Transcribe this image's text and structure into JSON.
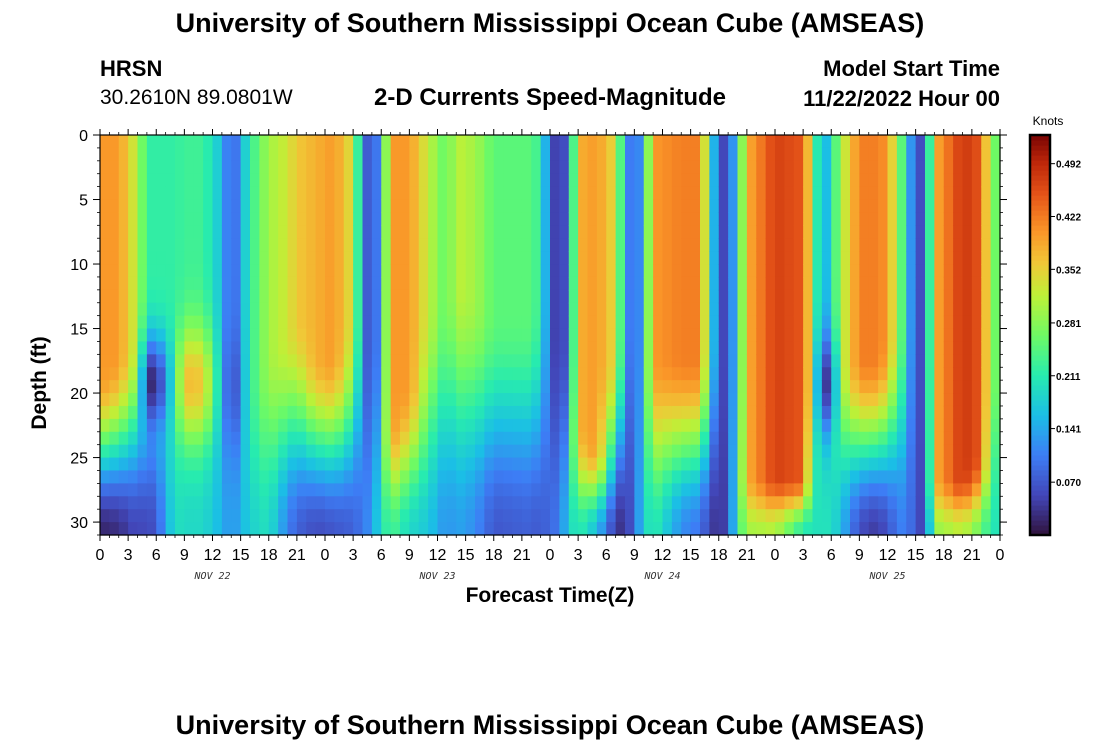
{
  "main_title": "University of Southern Mississippi Ocean Cube (AMSEAS)",
  "bottom_title": "University of Southern Mississippi Ocean Cube (AMSEAS)",
  "station": {
    "name": "HRSN",
    "coords": "30.2610N  89.0801W"
  },
  "model_start": {
    "label": "Model Start Time",
    "value": "11/22/2022 Hour 00"
  },
  "chart_data": {
    "type": "heatmap",
    "title": "2-D Currents Speed-Magnitude",
    "xlabel": "Forecast Time(Z)",
    "ylabel": "Depth (ft)",
    "x_tick_labels": [
      "0",
      "3",
      "6",
      "9",
      "12",
      "15",
      "18",
      "21",
      "0",
      "3",
      "6",
      "9",
      "12",
      "15",
      "18",
      "21",
      "0",
      "3",
      "6",
      "9",
      "12",
      "15",
      "18",
      "21",
      "0",
      "3",
      "6",
      "9",
      "12",
      "15",
      "18",
      "21",
      "0"
    ],
    "x_range_hours": [
      0,
      96
    ],
    "date_labels": [
      {
        "text": "NOV 22",
        "hour": 12
      },
      {
        "text": "NOV 23",
        "hour": 36
      },
      {
        "text": "NOV 24",
        "hour": 60
      },
      {
        "text": "NOV 25",
        "hour": 84
      }
    ],
    "y_tick_labels": [
      "0",
      "5",
      "10",
      "15",
      "20",
      "25",
      "30"
    ],
    "y_range_ft": [
      0,
      31
    ],
    "colorbar": {
      "unit": "Knots",
      "min": 0.0,
      "max": 0.53,
      "tick_labels": [
        "0.492",
        "0.422",
        "0.352",
        "0.281",
        "0.211",
        "0.141",
        "0.070"
      ],
      "tick_values": [
        0.492,
        0.422,
        0.352,
        0.281,
        0.211,
        0.141,
        0.07
      ]
    },
    "profiles": [
      {
        "hour": 0,
        "top": 0.4,
        "bottom": 0.02,
        "knee": 0.6
      },
      {
        "hour": 2,
        "top": 0.4,
        "bottom": 0.03,
        "knee": 0.55
      },
      {
        "hour": 4,
        "top": 0.31,
        "bottom": 0.06,
        "knee": 0.5
      },
      {
        "hour": 5,
        "top": 0.22,
        "bottom": 0.05,
        "knee": 0.55,
        "mid_min": 0.03
      },
      {
        "hour": 6,
        "top": 0.22,
        "bottom": 0.07,
        "knee": 0.5,
        "mid_min": 0.02
      },
      {
        "hour": 8,
        "top": 0.22,
        "bottom": 0.2,
        "knee": 0.6
      },
      {
        "hour": 9,
        "top": 0.23,
        "bottom": 0.19,
        "knee": 0.6,
        "mid_max": 0.37
      },
      {
        "hour": 11,
        "top": 0.23,
        "bottom": 0.19,
        "knee": 0.6,
        "mid_max": 0.36
      },
      {
        "hour": 13,
        "top": 0.16,
        "bottom": 0.15,
        "knee": 0.6
      },
      {
        "hour": 14,
        "top": 0.06,
        "bottom": 0.12,
        "knee": 0.6,
        "mid_min": 0.03
      },
      {
        "hour": 16,
        "top": 0.22,
        "bottom": 0.18,
        "knee": 0.6
      },
      {
        "hour": 18,
        "top": 0.3,
        "bottom": 0.2,
        "knee": 0.55
      },
      {
        "hour": 20,
        "top": 0.33,
        "bottom": 0.11,
        "knee": 0.5
      },
      {
        "hour": 21,
        "top": 0.36,
        "bottom": 0.08,
        "knee": 0.45
      },
      {
        "hour": 23,
        "top": 0.38,
        "bottom": 0.06,
        "knee": 0.55
      },
      {
        "hour": 25,
        "top": 0.4,
        "bottom": 0.07,
        "knee": 0.55
      },
      {
        "hour": 27,
        "top": 0.33,
        "bottom": 0.08,
        "knee": 0.45
      },
      {
        "hour": 28,
        "top": 0.12,
        "bottom": 0.1,
        "knee": 0.45
      },
      {
        "hour": 29,
        "top": 0.03,
        "bottom": 0.13,
        "knee": 0.5
      },
      {
        "hour": 30,
        "top": 0.17,
        "bottom": 0.2,
        "knee": 0.5
      },
      {
        "hour": 31,
        "top": 0.4,
        "bottom": 0.24,
        "knee": 0.72
      },
      {
        "hour": 33,
        "top": 0.4,
        "bottom": 0.19,
        "knee": 0.62
      },
      {
        "hour": 35,
        "top": 0.32,
        "bottom": 0.17,
        "knee": 0.45
      },
      {
        "hour": 37,
        "top": 0.25,
        "bottom": 0.12,
        "knee": 0.4
      },
      {
        "hour": 38,
        "top": 0.32,
        "bottom": 0.14,
        "knee": 0.35
      },
      {
        "hour": 40,
        "top": 0.3,
        "bottom": 0.12,
        "knee": 0.4
      },
      {
        "hour": 42,
        "top": 0.25,
        "bottom": 0.07,
        "knee": 0.45
      },
      {
        "hour": 46,
        "top": 0.25,
        "bottom": 0.08,
        "knee": 0.45
      },
      {
        "hour": 47,
        "top": 0.22,
        "bottom": 0.07,
        "knee": 0.4
      },
      {
        "hour": 48,
        "top": 0.08,
        "bottom": 0.09,
        "knee": 0.45
      },
      {
        "hour": 49,
        "top": 0.02,
        "bottom": 0.1,
        "knee": 0.5
      },
      {
        "hour": 50,
        "top": 0.1,
        "bottom": 0.18,
        "knee": 0.5
      },
      {
        "hour": 51,
        "top": 0.38,
        "bottom": 0.22,
        "knee": 0.72
      },
      {
        "hour": 53,
        "top": 0.4,
        "bottom": 0.16,
        "knee": 0.78
      },
      {
        "hour": 55,
        "top": 0.34,
        "bottom": 0.04,
        "knee": 0.55
      },
      {
        "hour": 56,
        "top": 0.15,
        "bottom": 0.03,
        "knee": 0.45
      },
      {
        "hour": 57,
        "top": 0.06,
        "bottom": 0.09,
        "knee": 0.45
      },
      {
        "hour": 58,
        "top": 0.17,
        "bottom": 0.18,
        "knee": 0.5
      },
      {
        "hour": 59,
        "top": 0.4,
        "bottom": 0.22,
        "knee": 0.55
      },
      {
        "hour": 62,
        "top": 0.42,
        "bottom": 0.12,
        "knee": 0.55
      },
      {
        "hour": 64,
        "top": 0.42,
        "bottom": 0.1,
        "knee": 0.55
      },
      {
        "hour": 65,
        "top": 0.25,
        "bottom": 0.05,
        "knee": 0.5
      },
      {
        "hour": 66,
        "top": 0.05,
        "bottom": 0.03,
        "knee": 0.5
      },
      {
        "hour": 67,
        "top": 0.06,
        "bottom": 0.06,
        "knee": 0.5
      },
      {
        "hour": 68,
        "top": 0.19,
        "bottom": 0.22,
        "knee": 0.5
      },
      {
        "hour": 69,
        "top": 0.38,
        "bottom": 0.3,
        "knee": 0.85
      },
      {
        "hour": 72,
        "top": 0.47,
        "bottom": 0.31,
        "knee": 0.85
      },
      {
        "hour": 75,
        "top": 0.45,
        "bottom": 0.21,
        "knee": 0.85
      },
      {
        "hour": 76,
        "top": 0.3,
        "bottom": 0.2,
        "knee": 0.6
      },
      {
        "hour": 77,
        "top": 0.12,
        "bottom": 0.2,
        "knee": 0.5,
        "mid_min": 0.02
      },
      {
        "hour": 78,
        "top": 0.2,
        "bottom": 0.2,
        "knee": 0.5,
        "mid_min": 0.06
      },
      {
        "hour": 79,
        "top": 0.3,
        "bottom": 0.16,
        "knee": 0.55
      },
      {
        "hour": 81,
        "top": 0.42,
        "bottom": 0.06,
        "knee": 0.55
      },
      {
        "hour": 83,
        "top": 0.42,
        "bottom": 0.04,
        "knee": 0.55
      },
      {
        "hour": 84,
        "top": 0.4,
        "bottom": 0.07,
        "knee": 0.5
      },
      {
        "hour": 86,
        "top": 0.2,
        "bottom": 0.12,
        "knee": 0.45
      },
      {
        "hour": 87,
        "top": 0.05,
        "bottom": 0.06,
        "knee": 0.5
      },
      {
        "hour": 88,
        "top": 0.07,
        "bottom": 0.05,
        "knee": 0.5
      },
      {
        "hour": 89,
        "top": 0.38,
        "bottom": 0.29,
        "knee": 0.85
      },
      {
        "hour": 92,
        "top": 0.48,
        "bottom": 0.32,
        "knee": 0.85
      },
      {
        "hour": 94,
        "top": 0.45,
        "bottom": 0.26,
        "knee": 0.8
      },
      {
        "hour": 95,
        "top": 0.28,
        "bottom": 0.21,
        "knee": 0.6
      },
      {
        "hour": 96,
        "top": 0.25,
        "bottom": 0.2,
        "knee": 0.6
      }
    ]
  }
}
